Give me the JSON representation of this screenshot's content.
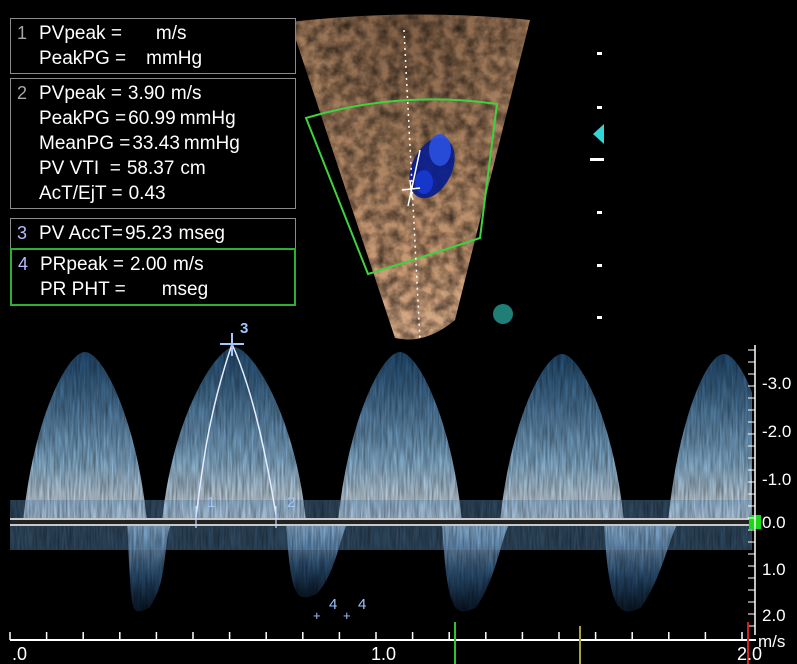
{
  "measurements": {
    "box1": {
      "num": "1",
      "rows": [
        {
          "label": "PVpeak =",
          "value": "",
          "unit": "m/s"
        },
        {
          "label": "PeakPG =",
          "value": "",
          "unit": "mmHg"
        }
      ]
    },
    "box2": {
      "num": "2",
      "rows": [
        {
          "label": "PVpeak =",
          "value": "3.90",
          "unit": "m/s"
        },
        {
          "label": "PeakPG =",
          "value": "60.99",
          "unit": "mmHg"
        },
        {
          "label": "MeanPG =",
          "value": "33.43",
          "unit": "mmHg"
        },
        {
          "label": "PV VTI  =",
          "value": "58.37",
          "unit": "cm"
        },
        {
          "label": "AcT/EjT =",
          "value": "0.43",
          "unit": ""
        }
      ]
    },
    "box3": {
      "num": "3",
      "rows": [
        {
          "label": "PV AccT=",
          "value": "95.23",
          "unit": "mseg"
        }
      ]
    },
    "box4": {
      "num": "4",
      "rows": [
        {
          "label": "PRpeak =",
          "value": "2.00",
          "unit": "m/s"
        },
        {
          "label": "PR PHT =",
          "value": "",
          "unit": "mseg"
        }
      ]
    }
  },
  "velocity_scale": {
    "labels": [
      "-3.0",
      "-2.0",
      "-1.0",
      "0.0",
      "1.0",
      "2.0"
    ],
    "unit": "m/s"
  },
  "time_axis": {
    "labels": [
      ".0",
      "1.0",
      "2.0"
    ]
  },
  "trace_markers": {
    "peak": "3",
    "start": "1",
    "end": "2",
    "pr_a": "4",
    "pr_b": "4"
  },
  "colors": {
    "active_box_border": "#2fae2f",
    "spectral": "#7fb8e8",
    "baseline": "#ffffff",
    "roi_box": "#3ed23e",
    "color_flow": "#1a3cc8"
  }
}
